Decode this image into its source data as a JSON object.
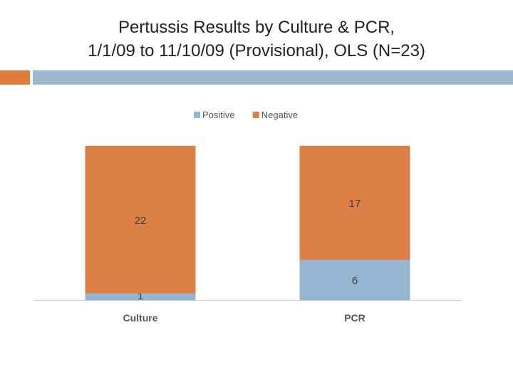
{
  "slide": {
    "title_line1": "Pertussis Results by Culture & PCR,",
    "title_line2": "1/1/09 to 11/10/09 (Provisional), OLS (N=23)",
    "accent_color": "#E07B39",
    "band_color": "#9DB7CF"
  },
  "chart_data": {
    "type": "bar",
    "stacked": true,
    "categories": [
      "Culture",
      "PCR"
    ],
    "series": [
      {
        "name": "Positive",
        "values": [
          1,
          6
        ],
        "color": "#94B6D2"
      },
      {
        "name": "Negative",
        "values": [
          22,
          17
        ],
        "color": "#DD8047"
      }
    ],
    "legend_position": "top",
    "ylim": [
      0,
      23
    ],
    "grid": false,
    "data_labels": true
  }
}
